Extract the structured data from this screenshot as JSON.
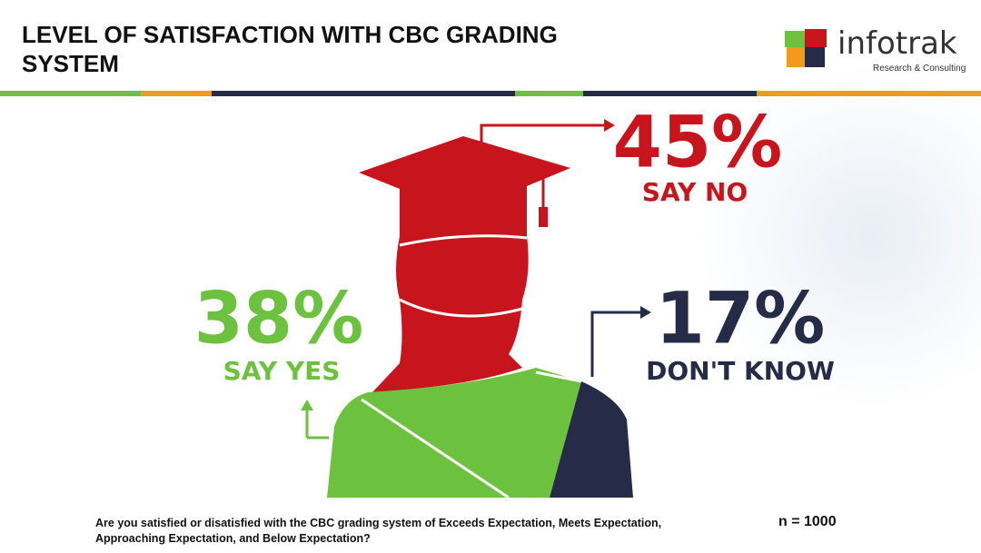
{
  "chart_data": {
    "type": "pictogram",
    "title": "LEVEL OF SATISFACTION WITH CBC GRADING SYSTEM",
    "categories": [
      "SAY NO",
      "SAY YES",
      "DON'T KNOW"
    ],
    "values": [
      45,
      38,
      17
    ],
    "value_labels": [
      "45%",
      "38%",
      "17%"
    ],
    "colors": [
      "#c8141c",
      "#6cc23e",
      "#262b47"
    ],
    "question": "Are you satisfied or disatisfied with the CBC grading system of Exceeds Expectation, Meets Expectation, Approaching Expectation, and Below Expectation?",
    "sample": "n = 1000"
  },
  "brand": {
    "name": "infotrak",
    "tagline": "Research & Consulting"
  }
}
